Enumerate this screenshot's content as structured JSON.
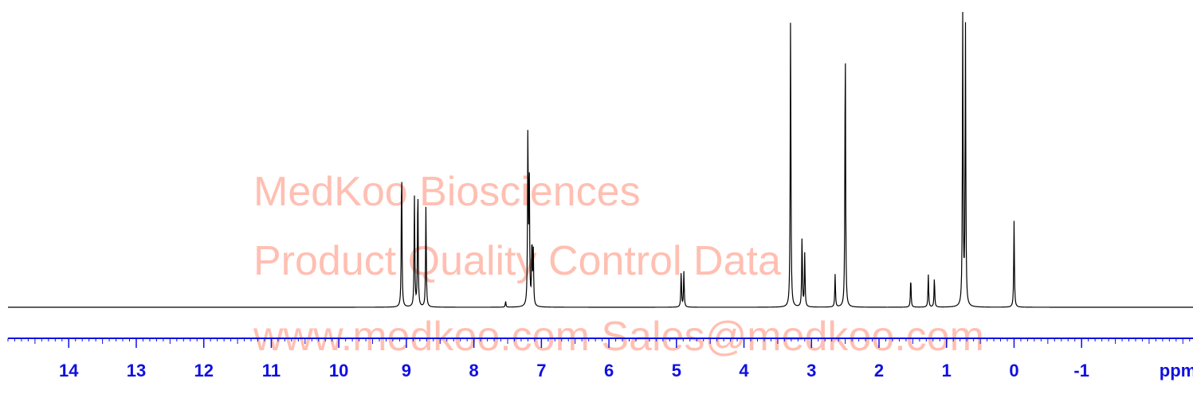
{
  "chart_data": {
    "type": "line",
    "title": "",
    "xlabel": "ppm",
    "ylabel": "",
    "x_reversed": true,
    "xlim": [
      14.9,
      -2.65
    ],
    "ylim": [
      0,
      1
    ],
    "tick_labels": [
      "14",
      "13",
      "12",
      "11",
      "10",
      "9",
      "8",
      "7",
      "6",
      "5",
      "4",
      "3",
      "2",
      "1",
      "0",
      "-1"
    ],
    "tick_values": [
      14,
      13,
      12,
      11,
      10,
      9,
      8,
      7,
      6,
      5,
      4,
      3,
      2,
      1,
      0,
      -1
    ],
    "minor_tick_step": 0.1,
    "axis_color": "#1010e0",
    "line_color": "#000000",
    "peaks": [
      {
        "ppm": 9.07,
        "height": 0.49
      },
      {
        "ppm": 8.88,
        "height": 0.37
      },
      {
        "ppm": 8.83,
        "height": 0.41
      },
      {
        "ppm": 8.71,
        "height": 0.34
      },
      {
        "ppm": 7.53,
        "height": 0.02
      },
      {
        "ppm": 7.2,
        "height": 0.59
      },
      {
        "ppm": 7.18,
        "height": 0.45
      },
      {
        "ppm": 7.14,
        "height": 0.22
      },
      {
        "ppm": 7.12,
        "height": 0.18
      },
      {
        "ppm": 4.93,
        "height": 0.12
      },
      {
        "ppm": 4.89,
        "height": 0.12
      },
      {
        "ppm": 3.31,
        "height": 0.99
      },
      {
        "ppm": 3.14,
        "height": 0.24
      },
      {
        "ppm": 3.1,
        "height": 0.18
      },
      {
        "ppm": 2.65,
        "height": 0.11
      },
      {
        "ppm": 2.5,
        "height": 0.91
      },
      {
        "ppm": 1.53,
        "height": 0.1
      },
      {
        "ppm": 1.27,
        "height": 0.11
      },
      {
        "ppm": 1.18,
        "height": 0.1
      },
      {
        "ppm": 0.76,
        "height": 0.98
      },
      {
        "ppm": 0.72,
        "height": 0.94
      },
      {
        "ppm": 0.0,
        "height": 0.29
      }
    ]
  },
  "watermark": {
    "line1": "MedKoo Biosciences",
    "line2": "Product Quality Control Data",
    "line3": "www.medkoo.com   Sales@medkoo.com",
    "color": "#ff5a36"
  }
}
